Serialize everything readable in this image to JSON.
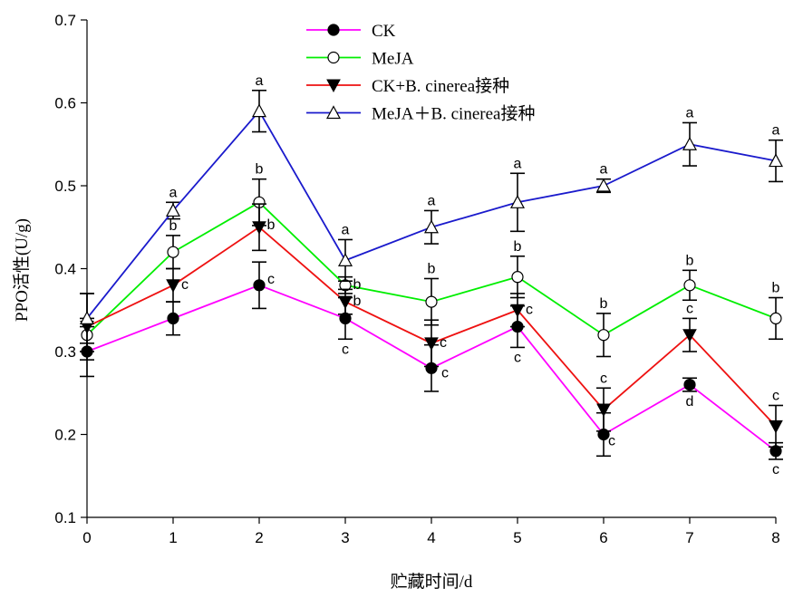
{
  "chart_data": {
    "type": "line",
    "title": "",
    "xlabel": "贮藏时间/d",
    "ylabel": "PPO活性(U/g)",
    "x": [
      0,
      1,
      2,
      3,
      4,
      5,
      6,
      7,
      8
    ],
    "xlim": [
      0,
      8
    ],
    "ylim": [
      0.1,
      0.7
    ],
    "x_ticks": [
      "0",
      "1",
      "2",
      "3",
      "4",
      "5",
      "6",
      "7",
      "8"
    ],
    "y_ticks": [
      "0.1",
      "0.2",
      "0.3",
      "0.4",
      "0.5",
      "0.6",
      "0.7"
    ],
    "grid": false,
    "legend_position": "top-center",
    "series": [
      {
        "name": "CK",
        "color": "#ff00ff",
        "marker": "filled-circle",
        "values": [
          0.3,
          0.34,
          0.38,
          0.34,
          0.28,
          0.33,
          0.2,
          0.26,
          0.18
        ],
        "errors": [
          0.03,
          0.02,
          0.028,
          0.025,
          0.028,
          0.025,
          0.026,
          0.008,
          0.01
        ],
        "labels": [
          "",
          "",
          "c",
          "c",
          "c",
          "c",
          "c",
          "d",
          "c"
        ]
      },
      {
        "name": "MeJA",
        "color": "#00ee00",
        "marker": "open-circle",
        "values": [
          0.32,
          0.42,
          0.48,
          0.38,
          0.36,
          0.39,
          0.32,
          0.38,
          0.34
        ],
        "errors": [
          0.02,
          0.02,
          0.028,
          0.01,
          0.028,
          0.025,
          0.026,
          0.018,
          0.025
        ],
        "labels": [
          "",
          "b",
          "b",
          "b",
          "b",
          "b",
          "b",
          "b",
          "b"
        ]
      },
      {
        "name": "CK+B. cinerea接种",
        "color": "#ee1111",
        "marker": "filled-triangle-down",
        "values": [
          0.33,
          0.38,
          0.45,
          0.36,
          0.31,
          0.35,
          0.23,
          0.32,
          0.21
        ],
        "errors": [
          0.04,
          0.02,
          0.028,
          0.015,
          0.028,
          0.02,
          0.026,
          0.02,
          0.025
        ],
        "labels": [
          "",
          "c",
          "b",
          "b",
          "c",
          "c",
          "c",
          "c",
          "c"
        ]
      },
      {
        "name": " MeJA＋B. cinerea接种",
        "color": "#1a1acc",
        "marker": "open-triangle-up",
        "values": [
          0.34,
          0.47,
          0.59,
          0.41,
          0.45,
          0.48,
          0.5,
          0.55,
          0.53
        ],
        "errors": [
          0.03,
          0.01,
          0.025,
          0.025,
          0.02,
          0.035,
          0.008,
          0.026,
          0.025
        ],
        "labels": [
          "",
          "a",
          "a",
          "a",
          "a",
          "a",
          "a",
          "a",
          "a"
        ]
      }
    ]
  }
}
